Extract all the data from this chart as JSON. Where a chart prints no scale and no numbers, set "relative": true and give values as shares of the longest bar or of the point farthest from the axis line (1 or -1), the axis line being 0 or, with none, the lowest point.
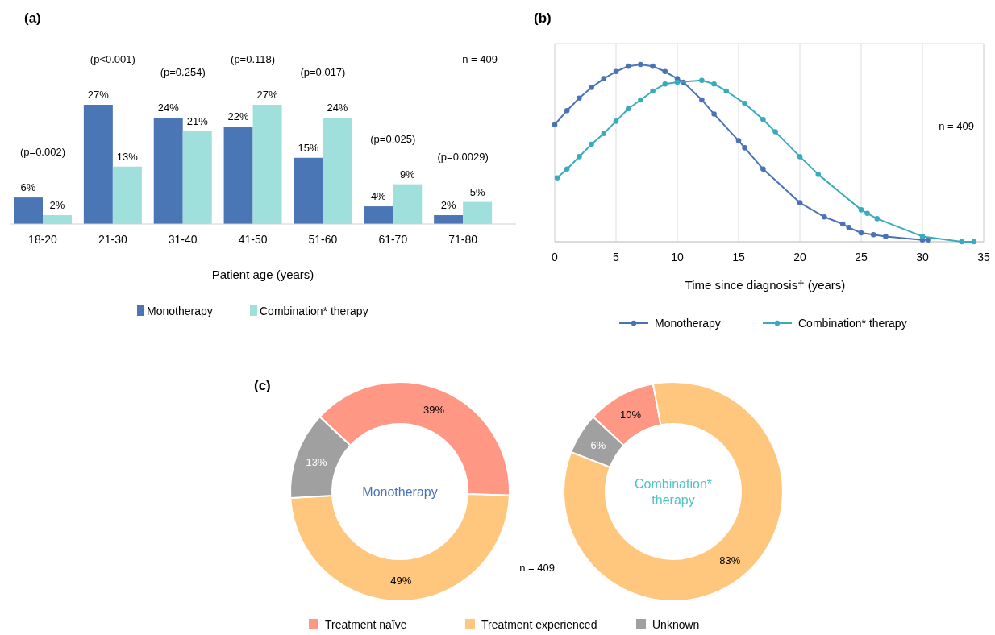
{
  "chart_data": [
    {
      "type": "bar",
      "title": "(a)",
      "xlabel": "Patient age (years)",
      "categories": [
        "18-20",
        "21-30",
        "31-40",
        "41-50",
        "51-60",
        "61-70",
        "71-80"
      ],
      "series": [
        {
          "name": "Monotherapy",
          "color": "#4a76b5",
          "values": [
            6,
            27,
            24,
            22,
            15,
            4,
            2
          ],
          "value_labels": [
            "6%",
            "27%",
            "24%",
            "22%",
            "15%",
            "4%",
            "2%"
          ]
        },
        {
          "name": "Combination* therapy",
          "color": "#a0e0dc",
          "values": [
            2,
            13,
            21,
            27,
            24,
            9,
            5
          ],
          "value_labels": [
            "2%",
            "13%",
            "21%",
            "27%",
            "24%",
            "9%",
            "5%"
          ]
        }
      ],
      "annotations": [
        "(p=0.002)",
        "(p<0.001)",
        "(p=0.254)",
        "(p=0.118)",
        "(p=0.017)",
        "(p=0.025)",
        "(p=0.0029)",
        "n = 409"
      ],
      "legend": "bottom"
    },
    {
      "type": "line",
      "title": "(b)",
      "xlabel": "Time since diagnosis† (years)",
      "relative": true,
      "xlim": [
        0,
        35
      ],
      "xticks": [
        0,
        5,
        10,
        15,
        20,
        25,
        30,
        35
      ],
      "grid": "x",
      "marker": "circle",
      "legend": "bottom",
      "annotations": [
        "n = 409"
      ],
      "series": [
        {
          "name": "Monotherapy",
          "color": "#4a72b8",
          "x": [
            0,
            1,
            2,
            3,
            4,
            5,
            6,
            7,
            8,
            9,
            10,
            10.5,
            12,
            13,
            15,
            15.5,
            17,
            20,
            22,
            23.5,
            24,
            25,
            26,
            27,
            30,
            30.5
          ],
          "values": [
            0.66,
            0.74,
            0.81,
            0.87,
            0.92,
            0.96,
            0.99,
            1,
            0.99,
            0.96,
            0.92,
            0.9,
            0.8,
            0.72,
            0.57,
            0.53,
            0.41,
            0.22,
            0.14,
            0.1,
            0.08,
            0.05,
            0.04,
            0.03,
            0.01,
            0.01
          ]
        },
        {
          "name": "Combination* therapy",
          "color": "#3aabbc",
          "x": [
            0.2,
            1,
            2,
            3,
            4,
            5,
            6,
            7,
            8,
            9,
            10,
            12,
            13,
            14,
            15.5,
            17,
            18,
            20,
            21.5,
            25,
            25.5,
            26.3,
            30,
            33.2,
            34.2
          ],
          "values": [
            0.36,
            0.41,
            0.48,
            0.55,
            0.61,
            0.68,
            0.75,
            0.8,
            0.85,
            0.89,
            0.9,
            0.91,
            0.89,
            0.85,
            0.78,
            0.69,
            0.62,
            0.48,
            0.38,
            0.18,
            0.16,
            0.13,
            0.03,
            0,
            0
          ]
        }
      ]
    },
    {
      "type": "donut",
      "title": "(c)",
      "categories": [
        "Treatment naïve",
        "Treatment experienced",
        "Unknown"
      ],
      "colors": [
        "#fe9783",
        "#ffc77e",
        "#a0a0a0"
      ],
      "legend": "bottom",
      "annotations": [
        "n = 409"
      ],
      "series": [
        {
          "name": "Monotherapy",
          "values": [
            39,
            49,
            13
          ],
          "value_labels": [
            "39%",
            "49%",
            "13%"
          ]
        },
        {
          "name": "Combination* therapy",
          "values": [
            10,
            83,
            6
          ],
          "value_labels": [
            "10%",
            "83%",
            "6%"
          ]
        }
      ]
    }
  ]
}
